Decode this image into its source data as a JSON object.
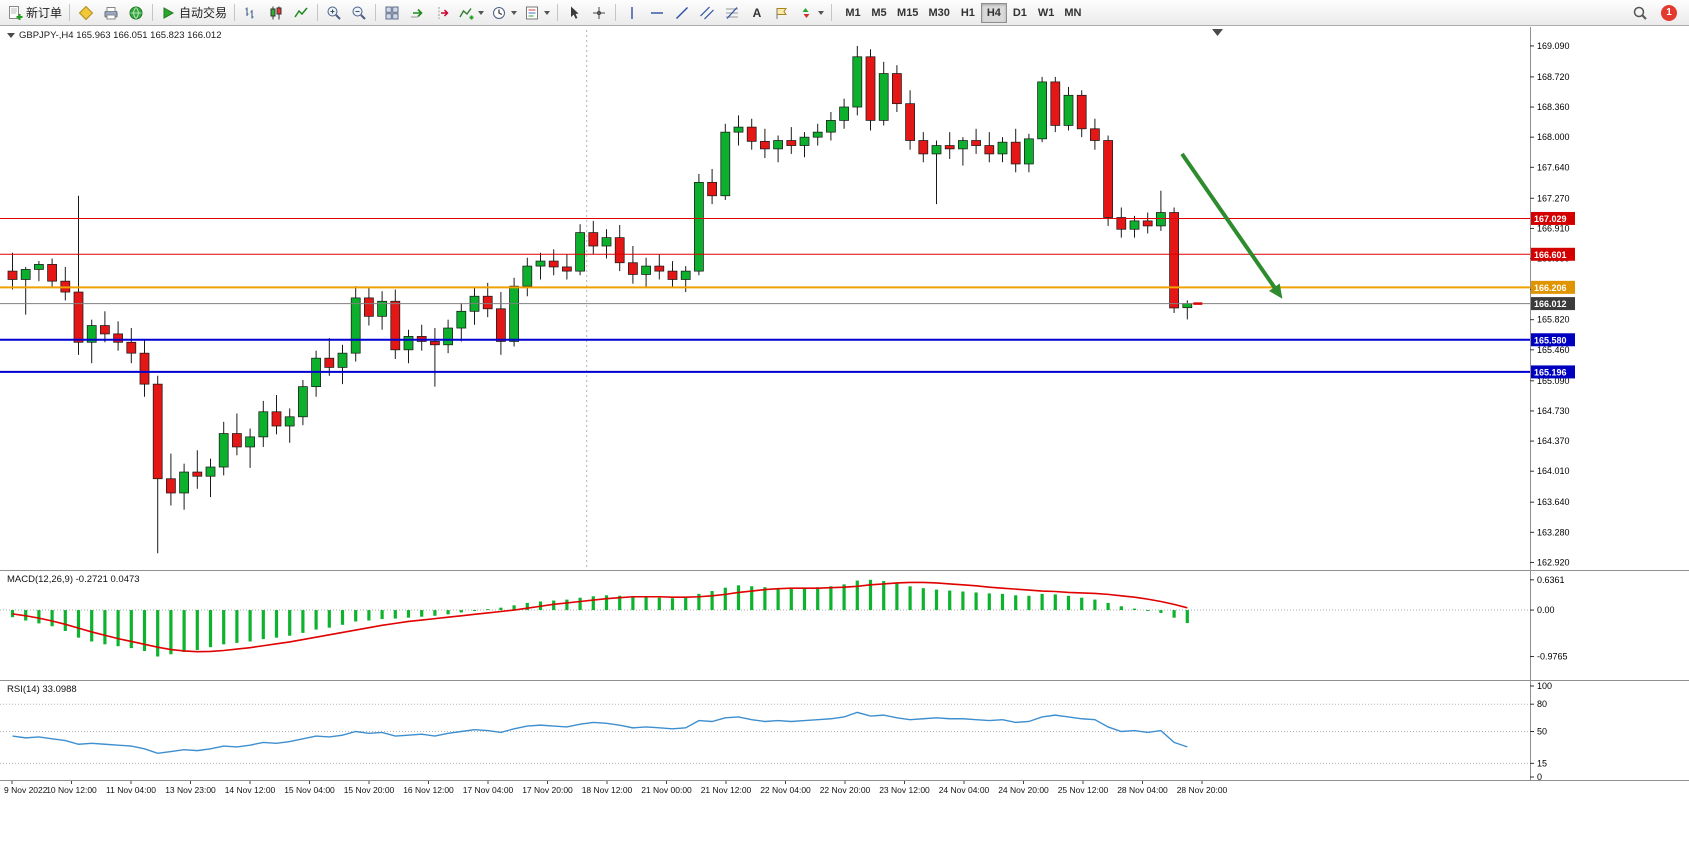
{
  "toolbar": {
    "new_order": "新订单",
    "autotrading": "自动交易",
    "timeframes": [
      "M1",
      "M5",
      "M15",
      "M30",
      "H1",
      "H4",
      "D1",
      "W1",
      "MN"
    ],
    "active_timeframe": "H4",
    "notification_count": "1"
  },
  "chart": {
    "title": "GBPJPY-,H4 165.963 166.051 165.823 166.012"
  },
  "indicators": {
    "macd_label": "MACD(12,26,9) -0.2721 0.0473",
    "rsi_label": "RSI(14) 33.0988"
  },
  "chart_data": {
    "type": "candlestick",
    "symbol": "GBPJPY-",
    "timeframe": "H4",
    "last_ohlc": {
      "open": 165.963,
      "high": 166.051,
      "low": 165.823,
      "close": 166.012
    },
    "price_range": {
      "min": 162.83,
      "max": 169.28
    },
    "price_axis_labels": [
      "169.090",
      "168.720",
      "168.360",
      "168.000",
      "167.640",
      "167.270",
      "166.910",
      "166.550",
      "166.180",
      "165.820",
      "165.460",
      "165.090",
      "164.730",
      "164.370",
      "164.010",
      "163.640",
      "163.280",
      "162.920"
    ],
    "time_labels": [
      "9 Nov 2022",
      "10 Nov 12:00",
      "11 Nov 04:00",
      "13 Nov 23:00",
      "14 Nov 12:00",
      "15 Nov 04:00",
      "15 Nov 20:00",
      "16 Nov 12:00",
      "17 Nov 04:00",
      "17 Nov 20:00",
      "18 Nov 12:00",
      "21 Nov 00:00",
      "21 Nov 12:00",
      "22 Nov 04:00",
      "22 Nov 20:00",
      "23 Nov 12:00",
      "24 Nov 04:00",
      "24 Nov 20:00",
      "25 Nov 12:00",
      "28 Nov 04:00",
      "28 Nov 20:00"
    ],
    "colors": {
      "up": "#0db02c",
      "down": "#e41616",
      "wick": "#1a1a1a",
      "background": "#ffffff"
    },
    "candles": [
      [
        166.4,
        166.62,
        166.18,
        166.3
      ],
      [
        166.3,
        166.45,
        165.88,
        166.42
      ],
      [
        166.42,
        166.52,
        166.28,
        166.48
      ],
      [
        166.48,
        166.55,
        166.2,
        166.28
      ],
      [
        166.28,
        166.45,
        166.05,
        166.15
      ],
      [
        166.15,
        167.3,
        165.4,
        165.55
      ],
      [
        165.55,
        165.82,
        165.3,
        165.75
      ],
      [
        165.75,
        165.92,
        165.55,
        165.65
      ],
      [
        165.65,
        165.8,
        165.45,
        165.55
      ],
      [
        165.55,
        165.72,
        165.3,
        165.42
      ],
      [
        165.42,
        165.58,
        164.9,
        165.05
      ],
      [
        165.05,
        165.15,
        163.03,
        163.92
      ],
      [
        163.92,
        164.22,
        163.6,
        163.75
      ],
      [
        163.75,
        164.1,
        163.55,
        164.0
      ],
      [
        164.0,
        164.26,
        163.8,
        163.95
      ],
      [
        163.95,
        164.16,
        163.7,
        164.06
      ],
      [
        164.06,
        164.6,
        163.96,
        164.46
      ],
      [
        164.46,
        164.7,
        164.2,
        164.3
      ],
      [
        164.3,
        164.52,
        164.05,
        164.42
      ],
      [
        164.42,
        164.85,
        164.3,
        164.72
      ],
      [
        164.72,
        164.92,
        164.45,
        164.55
      ],
      [
        164.55,
        164.76,
        164.35,
        164.66
      ],
      [
        164.66,
        165.1,
        164.56,
        165.02
      ],
      [
        165.02,
        165.45,
        164.9,
        165.36
      ],
      [
        165.36,
        165.6,
        165.15,
        165.25
      ],
      [
        165.25,
        165.52,
        165.05,
        165.42
      ],
      [
        165.42,
        166.22,
        165.32,
        166.08
      ],
      [
        166.08,
        166.2,
        165.75,
        165.86
      ],
      [
        165.86,
        166.16,
        165.7,
        166.04
      ],
      [
        166.04,
        166.18,
        165.35,
        165.46
      ],
      [
        165.46,
        165.7,
        165.3,
        165.62
      ],
      [
        165.62,
        165.76,
        165.45,
        165.56
      ],
      [
        165.56,
        165.72,
        165.02,
        165.52
      ],
      [
        165.52,
        165.82,
        165.42,
        165.72
      ],
      [
        165.72,
        166.02,
        165.56,
        165.92
      ],
      [
        165.92,
        166.2,
        165.76,
        166.1
      ],
      [
        166.1,
        166.26,
        165.85,
        165.95
      ],
      [
        165.95,
        166.15,
        165.4,
        165.56
      ],
      [
        165.56,
        166.32,
        165.5,
        166.22
      ],
      [
        166.22,
        166.56,
        166.1,
        166.46
      ],
      [
        166.46,
        166.62,
        166.3,
        166.52
      ],
      [
        166.52,
        166.66,
        166.35,
        166.45
      ],
      [
        166.45,
        166.6,
        166.3,
        166.4
      ],
      [
        166.4,
        166.96,
        166.35,
        166.86
      ],
      [
        166.86,
        167.0,
        166.6,
        166.7
      ],
      [
        166.7,
        166.9,
        166.55,
        166.8
      ],
      [
        166.8,
        166.95,
        166.4,
        166.5
      ],
      [
        166.5,
        166.7,
        166.25,
        166.36
      ],
      [
        166.36,
        166.56,
        166.2,
        166.46
      ],
      [
        166.46,
        166.6,
        166.3,
        166.4
      ],
      [
        166.4,
        166.52,
        166.2,
        166.3
      ],
      [
        166.3,
        166.46,
        166.15,
        166.4
      ],
      [
        166.4,
        167.56,
        166.35,
        167.46
      ],
      [
        167.46,
        167.62,
        167.2,
        167.3
      ],
      [
        167.3,
        168.16,
        167.25,
        168.06
      ],
      [
        168.06,
        168.26,
        167.9,
        168.12
      ],
      [
        168.12,
        168.22,
        167.85,
        167.95
      ],
      [
        167.95,
        168.1,
        167.75,
        167.86
      ],
      [
        167.86,
        168.02,
        167.7,
        167.96
      ],
      [
        167.96,
        168.12,
        167.8,
        167.9
      ],
      [
        167.9,
        168.06,
        167.76,
        168.0
      ],
      [
        168.0,
        168.16,
        167.9,
        168.06
      ],
      [
        168.06,
        168.3,
        167.96,
        168.2
      ],
      [
        168.2,
        168.46,
        168.1,
        168.36
      ],
      [
        168.36,
        169.09,
        168.26,
        168.96
      ],
      [
        168.96,
        169.05,
        168.08,
        168.2
      ],
      [
        168.2,
        168.9,
        168.14,
        168.76
      ],
      [
        168.76,
        168.86,
        168.3,
        168.4
      ],
      [
        168.4,
        168.56,
        167.85,
        167.96
      ],
      [
        167.96,
        168.06,
        167.7,
        167.8
      ],
      [
        167.8,
        167.96,
        167.2,
        167.9
      ],
      [
        167.9,
        168.06,
        167.74,
        167.86
      ],
      [
        167.86,
        168.0,
        167.66,
        167.96
      ],
      [
        167.96,
        168.1,
        167.8,
        167.9
      ],
      [
        167.9,
        168.06,
        167.7,
        167.8
      ],
      [
        167.8,
        168.0,
        167.7,
        167.94
      ],
      [
        167.94,
        168.1,
        167.58,
        167.68
      ],
      [
        167.68,
        168.04,
        167.58,
        167.98
      ],
      [
        167.98,
        168.72,
        167.94,
        168.66
      ],
      [
        168.66,
        168.72,
        168.06,
        168.14
      ],
      [
        168.14,
        168.6,
        168.08,
        168.5
      ],
      [
        168.5,
        168.56,
        168.0,
        168.1
      ],
      [
        168.1,
        168.22,
        167.85,
        167.96
      ],
      [
        167.96,
        168.02,
        166.94,
        167.04
      ],
      [
        167.04,
        167.16,
        166.8,
        166.9
      ],
      [
        166.9,
        167.06,
        166.8,
        167.0
      ],
      [
        167.0,
        167.1,
        166.85,
        166.94
      ],
      [
        166.94,
        167.36,
        166.88,
        167.1
      ],
      [
        167.1,
        167.16,
        165.9,
        165.96
      ],
      [
        165.963,
        166.051,
        165.823,
        166.012
      ]
    ],
    "hlines": [
      {
        "label": "167.029",
        "price": 167.029,
        "color": "#e00000",
        "tag": "#d40000",
        "width": 1
      },
      {
        "label": "166.601",
        "price": 166.601,
        "color": "#e00000",
        "tag": "#d40000",
        "width": 1
      },
      {
        "label": "166.206",
        "price": 166.206,
        "color": "#f0a000",
        "tag": "#df9400",
        "width": 2
      },
      {
        "label": "165.580",
        "price": 165.58,
        "color": "#0000d0",
        "tag": "#0000c0",
        "width": 2
      },
      {
        "label": "165.196",
        "price": 165.196,
        "color": "#0000d0",
        "tag": "#0000c0",
        "width": 2
      }
    ],
    "current_price": {
      "label": "166.012",
      "value": 166.012,
      "line_color": "#808080",
      "tag": "#3c3c3c",
      "tick_color": "#e00000"
    },
    "vline": {
      "index": 43.5,
      "color": "#b0b0b0"
    },
    "arrow": {
      "from": {
        "index": 88.6,
        "price": 167.8
      },
      "to": {
        "index": 96.2,
        "price": 166.07
      },
      "color": "#2e8b2e"
    },
    "macd": {
      "value": -0.2721,
      "signal_value": 0.0473,
      "axis_labels": [
        "0.6361",
        "0.00",
        "-0.9765"
      ],
      "axis_values": [
        0.6361,
        0,
        -0.9765
      ],
      "range": {
        "max": 0.8,
        "min": -1.47
      },
      "hist_color": "#0db32d",
      "signal_color": "#e00000",
      "histogram": [
        -0.15,
        -0.22,
        -0.28,
        -0.34,
        -0.44,
        -0.58,
        -0.66,
        -0.72,
        -0.76,
        -0.8,
        -0.86,
        -0.9765,
        -0.93,
        -0.88,
        -0.84,
        -0.78,
        -0.72,
        -0.69,
        -0.66,
        -0.61,
        -0.58,
        -0.54,
        -0.48,
        -0.41,
        -0.37,
        -0.31,
        -0.24,
        -0.22,
        -0.19,
        -0.18,
        -0.16,
        -0.14,
        -0.12,
        -0.09,
        -0.05,
        -0.02,
        0.02,
        0.05,
        0.1,
        0.15,
        0.18,
        0.2,
        0.22,
        0.26,
        0.29,
        0.31,
        0.3,
        0.28,
        0.27,
        0.26,
        0.25,
        0.27,
        0.34,
        0.4,
        0.47,
        0.52,
        0.5,
        0.48,
        0.46,
        0.45,
        0.46,
        0.48,
        0.5,
        0.54,
        0.62,
        0.6361,
        0.61,
        0.56,
        0.5,
        0.46,
        0.43,
        0.41,
        0.39,
        0.37,
        0.35,
        0.34,
        0.31,
        0.3,
        0.34,
        0.33,
        0.3,
        0.26,
        0.22,
        0.15,
        0.08,
        0.03,
        -0.02,
        -0.06,
        -0.16,
        -0.2721
      ],
      "signal": [
        -0.08,
        -0.12,
        -0.17,
        -0.23,
        -0.3,
        -0.38,
        -0.46,
        -0.53,
        -0.6,
        -0.66,
        -0.72,
        -0.78,
        -0.83,
        -0.86,
        -0.875,
        -0.87,
        -0.85,
        -0.82,
        -0.79,
        -0.75,
        -0.71,
        -0.67,
        -0.62,
        -0.57,
        -0.52,
        -0.47,
        -0.42,
        -0.37,
        -0.32,
        -0.28,
        -0.24,
        -0.21,
        -0.18,
        -0.15,
        -0.12,
        -0.09,
        -0.06,
        -0.03,
        0.0,
        0.04,
        0.08,
        0.12,
        0.15,
        0.18,
        0.21,
        0.24,
        0.26,
        0.28,
        0.28,
        0.28,
        0.27,
        0.27,
        0.28,
        0.3,
        0.33,
        0.37,
        0.4,
        0.43,
        0.45,
        0.46,
        0.46,
        0.46,
        0.47,
        0.48,
        0.5,
        0.53,
        0.55,
        0.57,
        0.58,
        0.58,
        0.57,
        0.55,
        0.53,
        0.51,
        0.48,
        0.46,
        0.44,
        0.42,
        0.4,
        0.39,
        0.37,
        0.36,
        0.35,
        0.33,
        0.3,
        0.27,
        0.23,
        0.18,
        0.12,
        0.0473
      ]
    },
    "rsi": {
      "value": 33.0988,
      "color": "#3e8fd0",
      "axis_labels": [
        "100",
        "80",
        "50",
        "15",
        "0"
      ],
      "axis_values": [
        100,
        80,
        50,
        15,
        0
      ],
      "levels": [
        80,
        50,
        15
      ],
      "values": [
        45,
        43,
        44,
        42,
        40,
        36,
        37,
        36,
        35,
        34,
        31,
        26,
        28,
        30,
        29,
        31,
        34,
        33,
        35,
        38,
        37,
        39,
        42,
        45,
        44,
        46,
        50,
        48,
        49,
        45,
        46,
        47,
        45,
        48,
        50,
        52,
        51,
        49,
        53,
        56,
        57,
        56,
        55,
        58,
        60,
        59,
        57,
        54,
        55,
        54,
        53,
        54,
        62,
        61,
        65,
        66,
        63,
        61,
        62,
        61,
        62,
        63,
        64,
        66,
        71,
        67,
        68,
        65,
        63,
        64,
        65,
        64,
        64,
        63,
        62,
        63,
        60,
        61,
        66,
        68,
        66,
        64,
        63,
        55,
        50,
        51,
        49,
        51,
        38,
        33.0988
      ]
    }
  }
}
